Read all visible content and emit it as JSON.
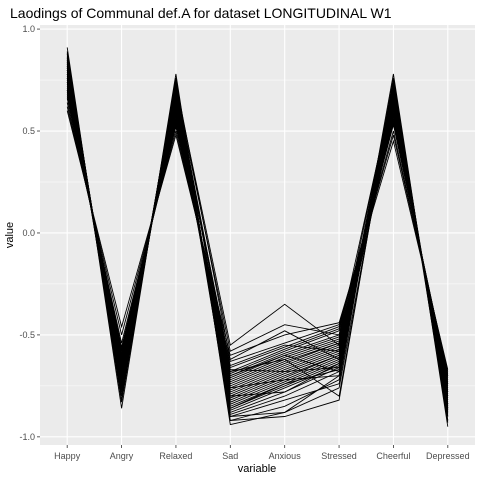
{
  "chart_data": {
    "type": "line",
    "title": "Laodings of Communal def.A for dataset LONGITUDINAL W1",
    "xlabel": "variable",
    "ylabel": "value",
    "categories": [
      "Happy",
      "Angry",
      "Relaxed",
      "Sad",
      "Anxious",
      "Stressed",
      "Cheerful",
      "Depressed"
    ],
    "ylim": [
      -1.04,
      1.02
    ],
    "yticks": [
      1.0,
      0.5,
      0.0,
      -0.5,
      -1.0
    ],
    "ytick_labels": [
      "1.0",
      "0.5",
      "0.0",
      "-0.5",
      "-1.0"
    ],
    "grid": true,
    "legend": "none",
    "colors": {
      "panel": "#ebebeb",
      "grid": "#ffffff",
      "line": "#000000",
      "tick_text": "#4d4d4d"
    },
    "series": [
      {
        "values": [
          0.91,
          -0.86,
          0.78,
          -0.94,
          -0.88,
          -0.7,
          0.78,
          -0.95
        ]
      },
      {
        "values": [
          0.89,
          -0.83,
          0.76,
          -0.92,
          -0.85,
          -0.72,
          0.76,
          -0.93
        ]
      },
      {
        "values": [
          0.88,
          -0.8,
          0.75,
          -0.9,
          -0.82,
          -0.74,
          0.75,
          -0.92
        ]
      },
      {
        "values": [
          0.87,
          -0.78,
          0.74,
          -0.89,
          -0.8,
          -0.68,
          0.74,
          -0.9
        ]
      },
      {
        "values": [
          0.86,
          -0.76,
          0.73,
          -0.88,
          -0.78,
          -0.66,
          0.73,
          -0.89
        ]
      },
      {
        "values": [
          0.85,
          -0.75,
          0.72,
          -0.87,
          -0.76,
          -0.65,
          0.72,
          -0.88
        ]
      },
      {
        "values": [
          0.84,
          -0.74,
          0.71,
          -0.86,
          -0.75,
          -0.64,
          0.71,
          -0.87
        ]
      },
      {
        "values": [
          0.83,
          -0.73,
          0.7,
          -0.85,
          -0.74,
          -0.63,
          0.7,
          -0.86
        ]
      },
      {
        "values": [
          0.82,
          -0.72,
          0.69,
          -0.84,
          -0.73,
          -0.62,
          0.69,
          -0.85
        ]
      },
      {
        "values": [
          0.81,
          -0.71,
          0.68,
          -0.83,
          -0.72,
          -0.61,
          0.68,
          -0.84
        ]
      },
      {
        "values": [
          0.8,
          -0.7,
          0.67,
          -0.82,
          -0.71,
          -0.6,
          0.67,
          -0.83
        ]
      },
      {
        "values": [
          0.79,
          -0.69,
          0.66,
          -0.81,
          -0.7,
          -0.6,
          0.66,
          -0.82
        ]
      },
      {
        "values": [
          0.78,
          -0.68,
          0.65,
          -0.8,
          -0.69,
          -0.59,
          0.65,
          -0.81
        ]
      },
      {
        "values": [
          0.77,
          -0.67,
          0.64,
          -0.79,
          -0.68,
          -0.58,
          0.64,
          -0.8
        ]
      },
      {
        "values": [
          0.76,
          -0.66,
          0.63,
          -0.78,
          -0.67,
          -0.57,
          0.63,
          -0.79
        ]
      },
      {
        "values": [
          0.75,
          -0.65,
          0.62,
          -0.77,
          -0.66,
          -0.56,
          0.62,
          -0.78
        ]
      },
      {
        "values": [
          0.74,
          -0.64,
          0.61,
          -0.76,
          -0.65,
          -0.55,
          0.61,
          -0.77
        ]
      },
      {
        "values": [
          0.73,
          -0.63,
          0.6,
          -0.75,
          -0.64,
          -0.54,
          0.6,
          -0.76
        ]
      },
      {
        "values": [
          0.72,
          -0.62,
          0.59,
          -0.74,
          -0.63,
          -0.54,
          0.59,
          -0.75
        ]
      },
      {
        "values": [
          0.71,
          -0.61,
          0.58,
          -0.73,
          -0.62,
          -0.53,
          0.58,
          -0.74
        ]
      },
      {
        "values": [
          0.7,
          -0.6,
          0.57,
          -0.72,
          -0.61,
          -0.52,
          0.57,
          -0.73
        ]
      },
      {
        "values": [
          0.69,
          -0.59,
          0.56,
          -0.71,
          -0.6,
          -0.51,
          0.56,
          -0.72
        ]
      },
      {
        "values": [
          0.68,
          -0.58,
          0.55,
          -0.7,
          -0.59,
          -0.5,
          0.55,
          -0.71
        ]
      },
      {
        "values": [
          0.67,
          -0.57,
          0.54,
          -0.69,
          -0.58,
          -0.48,
          0.54,
          -0.7
        ]
      },
      {
        "values": [
          0.66,
          -0.56,
          0.53,
          -0.68,
          -0.57,
          -0.47,
          0.53,
          -0.7
        ]
      },
      {
        "values": [
          0.64,
          -0.54,
          0.52,
          -0.66,
          -0.56,
          -0.46,
          0.5,
          -0.69
        ]
      },
      {
        "values": [
          0.62,
          -0.5,
          0.5,
          -0.63,
          -0.54,
          -0.45,
          0.48,
          -0.68
        ]
      },
      {
        "values": [
          0.6,
          -0.46,
          0.48,
          -0.6,
          -0.5,
          -0.44,
          0.45,
          -0.67
        ]
      },
      {
        "values": [
          0.85,
          -0.8,
          0.72,
          -0.55,
          -0.35,
          -0.55,
          0.72,
          -0.88
        ]
      },
      {
        "values": [
          0.8,
          -0.75,
          0.7,
          -0.58,
          -0.45,
          -0.5,
          0.7,
          -0.85
        ]
      },
      {
        "values": [
          0.88,
          -0.82,
          0.74,
          -0.62,
          -0.48,
          -0.62,
          0.74,
          -0.9
        ]
      },
      {
        "values": [
          0.76,
          -0.7,
          0.66,
          -0.65,
          -0.55,
          -0.58,
          0.64,
          -0.8
        ]
      },
      {
        "values": [
          0.82,
          -0.78,
          0.7,
          -0.68,
          -0.62,
          -0.8,
          0.7,
          -0.86
        ]
      },
      {
        "values": [
          0.86,
          -0.8,
          0.73,
          -0.92,
          -0.9,
          -0.82,
          0.72,
          -0.92
        ]
      },
      {
        "values": [
          0.78,
          -0.72,
          0.68,
          -0.9,
          -0.88,
          -0.76,
          0.68,
          -0.84
        ]
      },
      {
        "values": [
          0.74,
          -0.66,
          0.64,
          -0.67,
          -0.68,
          -0.66,
          0.62,
          -0.78
        ]
      },
      {
        "values": [
          0.7,
          -0.62,
          0.6,
          -0.8,
          -0.78,
          -0.64,
          0.58,
          -0.74
        ]
      },
      {
        "values": [
          0.84,
          -0.74,
          0.7,
          -0.7,
          -0.6,
          -0.68,
          0.72,
          -0.86
        ]
      },
      {
        "values": [
          0.83,
          -0.77,
          0.71,
          -0.76,
          -0.72,
          -0.7,
          0.7,
          -0.87
        ]
      },
      {
        "values": [
          0.81,
          -0.73,
          0.69,
          -0.86,
          -0.74,
          -0.67,
          0.69,
          -0.84
        ]
      }
    ]
  }
}
